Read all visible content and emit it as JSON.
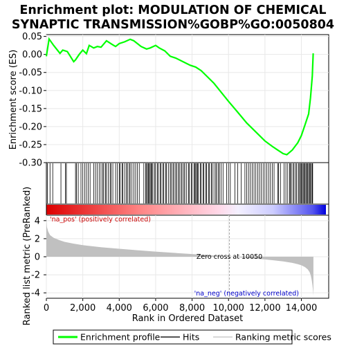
{
  "chart_data": {
    "type": "line",
    "title_lines": [
      "Enrichment plot: MODULATION OF CHEMICAL",
      "SYNAPTIC TRANSMISSION%GOBP%GO:0050804"
    ],
    "es_panel": {
      "ylabel": "Enrichment score (ES)",
      "ylim": [
        -0.3,
        0.055
      ],
      "yticks": [
        0.05,
        0.0,
        -0.05,
        -0.1,
        -0.15,
        -0.2,
        -0.25,
        -0.3
      ],
      "ytick_labels": [
        "0.05",
        "0.00",
        "-0.05",
        "-0.10",
        "-0.15",
        "-0.20",
        "-0.25",
        "-0.30"
      ],
      "series": [
        {
          "name": "Enrichment profile",
          "color": "#00ff00",
          "x": [
            0,
            150,
            400,
            750,
            900,
            1150,
            1500,
            1600,
            1800,
            2000,
            2200,
            2350,
            2600,
            2800,
            3000,
            3300,
            3600,
            3800,
            4000,
            4300,
            4600,
            4800,
            5000,
            5200,
            5500,
            5700,
            6000,
            6200,
            6500,
            6800,
            7100,
            7500,
            7900,
            8200,
            8500,
            8800,
            9200,
            9600,
            10000,
            10500,
            11000,
            11500,
            12000,
            12400,
            12700,
            13000,
            13200,
            13500,
            13800,
            14000,
            14200,
            14400,
            14500,
            14600,
            14650
          ],
          "y": [
            -0.005,
            0.043,
            0.025,
            0.003,
            0.012,
            0.008,
            -0.02,
            -0.015,
            0.0,
            0.012,
            0.002,
            0.025,
            0.018,
            0.022,
            0.02,
            0.038,
            0.028,
            0.022,
            0.03,
            0.035,
            0.042,
            0.038,
            0.03,
            0.022,
            0.015,
            0.018,
            0.025,
            0.018,
            0.01,
            -0.005,
            -0.01,
            -0.02,
            -0.03,
            -0.035,
            -0.045,
            -0.06,
            -0.08,
            -0.105,
            -0.13,
            -0.16,
            -0.19,
            -0.215,
            -0.24,
            -0.255,
            -0.265,
            -0.275,
            -0.278,
            -0.265,
            -0.245,
            -0.225,
            -0.195,
            -0.165,
            -0.12,
            -0.06,
            0.003
          ]
        }
      ]
    },
    "hits_panel": {
      "legend_name": "Hits",
      "hit_ranks": [
        60,
        200,
        350,
        800,
        1050,
        1100,
        1600,
        1650,
        1750,
        1900,
        2000,
        2100,
        2200,
        2300,
        2400,
        2600,
        2700,
        2800,
        2900,
        3000,
        3100,
        3150,
        3250,
        3300,
        3400,
        3500,
        3550,
        3650,
        3800,
        3900,
        4000,
        4050,
        4150,
        4200,
        4300,
        4400,
        4450,
        4550,
        4600,
        4700,
        4800,
        4900,
        5000,
        5100,
        5350,
        5450,
        5500,
        5550,
        5600,
        5650,
        5700,
        5750,
        5800,
        5850,
        5950,
        6000,
        6100,
        6150,
        6250,
        6300,
        6400,
        6450,
        6550,
        6600,
        6700,
        6800,
        6850,
        6950,
        7000,
        7100,
        7150,
        7250,
        7300,
        7400,
        7450,
        7550,
        7600,
        7700,
        7800,
        7850,
        7950,
        8000,
        8100,
        8150,
        8200,
        8250,
        8300,
        8350,
        8450,
        8500,
        8600,
        8650,
        8750,
        8800,
        8900,
        8950,
        9050,
        9100,
        9200,
        9300,
        9350,
        9450,
        9500,
        9600,
        9700,
        9900,
        10000,
        10100,
        10350,
        10500,
        10700,
        10900,
        11000,
        11100,
        11200,
        11300,
        11400,
        11500,
        11600,
        11700,
        11800,
        11900,
        12000,
        12100,
        12200,
        12300,
        12400,
        12500,
        12700,
        12750,
        12850,
        13050,
        13150,
        13250,
        13350,
        13400,
        13450,
        13550,
        13600,
        13700,
        13750,
        13850,
        13900,
        13950,
        14000,
        14050,
        14100,
        14150,
        14200,
        14250,
        14300,
        14350,
        14400,
        14450,
        14500,
        14550,
        14600,
        14620
      ]
    },
    "ranked_panel": {
      "ylabel": "Ranked list metric (PreRanked)",
      "xlabel": "Rank in Ordered Dataset",
      "ylim": [
        -4.6,
        4.6
      ],
      "yticks": [
        4,
        2,
        0,
        -2,
        -4
      ],
      "ytick_labels": [
        "4",
        "2",
        "0",
        "-2",
        "-4"
      ],
      "series": [
        {
          "name": "Ranking metric scores",
          "color": "#c0c0c0",
          "x": [
            0,
            30,
            100,
            200,
            400,
            700,
            1000,
            1500,
            2000,
            3000,
            4000,
            5000,
            6000,
            7000,
            8000,
            9000,
            10050,
            11000,
            12000,
            12500,
            13000,
            13500,
            13800,
            14000,
            14200,
            14350,
            14450,
            14520,
            14570,
            14610,
            14640,
            14660
          ],
          "y": [
            4.2,
            3.3,
            2.8,
            2.4,
            2.1,
            1.85,
            1.65,
            1.45,
            1.28,
            1.05,
            0.88,
            0.72,
            0.57,
            0.43,
            0.3,
            0.16,
            0.0,
            -0.14,
            -0.3,
            -0.4,
            -0.52,
            -0.68,
            -0.82,
            -0.95,
            -1.15,
            -1.4,
            -1.7,
            -2.1,
            -2.6,
            -3.2,
            -3.8,
            -4.3
          ]
        }
      ],
      "annotations": {
        "pos_label": "'na_pos' (positively correlated)",
        "neg_label": "'na_neg' (negatively correlated)",
        "zero_cross_label": "Zero cross at 10050",
        "zero_cross_rank": 10050
      }
    },
    "x_axis": {
      "xlim": [
        0,
        15500
      ],
      "xticks": [
        0,
        2000,
        4000,
        6000,
        8000,
        10000,
        12000,
        14000
      ],
      "xtick_labels": [
        "0",
        "2,000",
        "4,000",
        "6,000",
        "8,000",
        "10,000",
        "12,000",
        "14,000"
      ],
      "n_genes": 14660
    },
    "legend": {
      "placement": "bottom",
      "items": [
        "Enrichment profile",
        "Hits",
        "Ranking metric scores"
      ]
    },
    "colors": {
      "profile": "#00ff00",
      "hits": "#000000",
      "metric_fill": "#c0c0c0",
      "pos_label": "#cc0000",
      "neg_label": "#0000cc",
      "bar_pos": "#dd0000",
      "bar_neg": "#0000dd",
      "grid": "#e8e8e8"
    }
  }
}
